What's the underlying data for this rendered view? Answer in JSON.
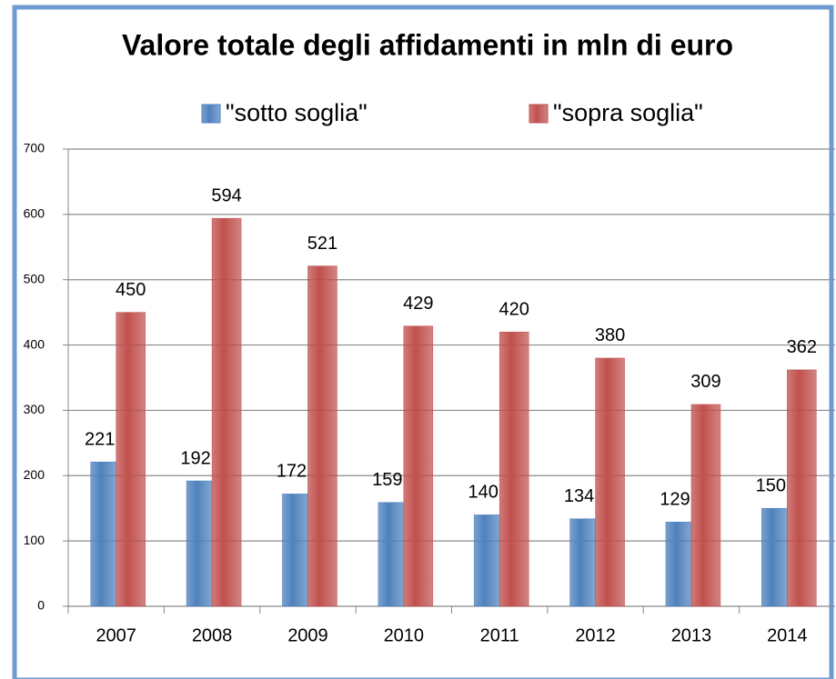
{
  "chart_data": {
    "type": "bar",
    "title": "Valore totale degli affidamenti in mln di euro",
    "categories": [
      "2007",
      "2008",
      "2009",
      "2010",
      "2011",
      "2012",
      "2013",
      "2014"
    ],
    "series": [
      {
        "name": "\"sotto soglia\"",
        "color": "#4f81bd",
        "values": [
          221,
          192,
          172,
          159,
          140,
          134,
          129,
          150
        ]
      },
      {
        "name": "\"sopra soglia\"",
        "color": "#c0504d",
        "values": [
          450,
          594,
          521,
          429,
          420,
          380,
          309,
          362
        ]
      }
    ],
    "ylim": [
      0,
      700
    ],
    "yticks": [
      0,
      100,
      200,
      300,
      400,
      500,
      600,
      700
    ],
    "grid": true,
    "legend": "top"
  }
}
